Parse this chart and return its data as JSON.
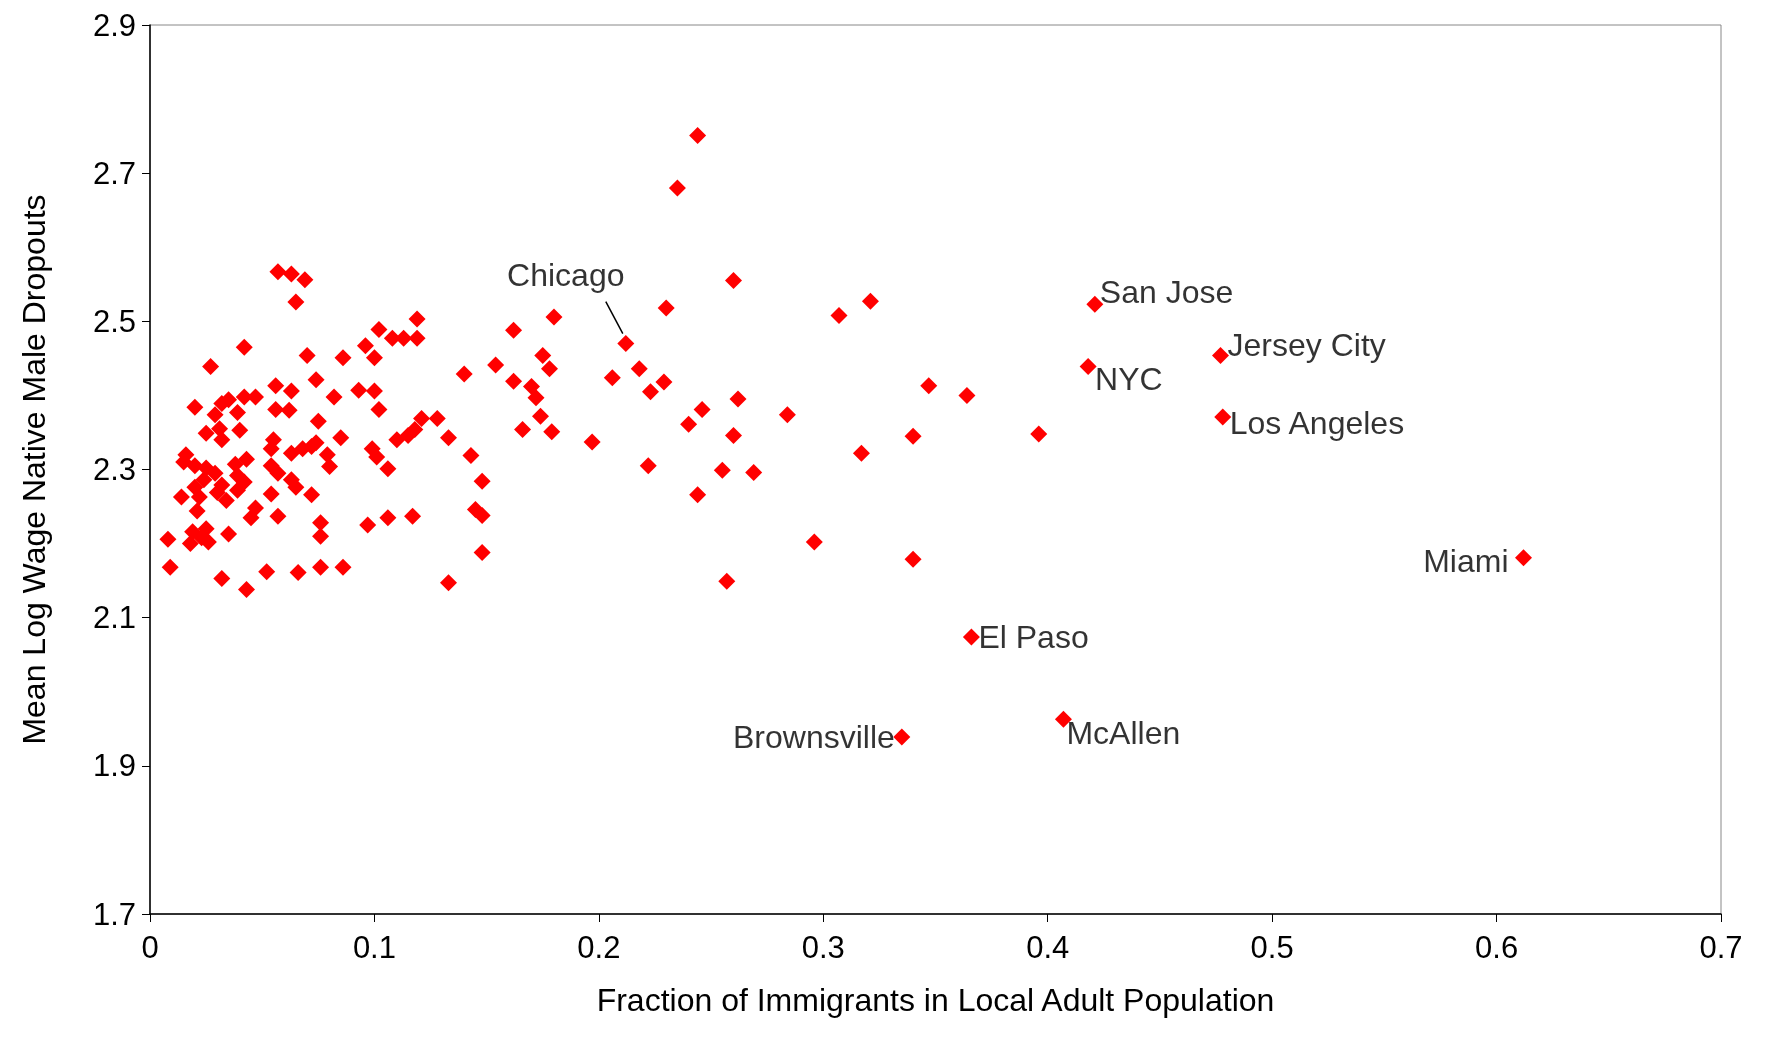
{
  "chart_data": {
    "type": "scatter",
    "xlabel": "Fraction of Immigrants in Local Adult Population",
    "ylabel": "Mean Log Wage Native Male Dropouts",
    "marker": "diamond",
    "grid": false,
    "xlim": [
      0,
      0.7
    ],
    "xticks": [
      0,
      0.1,
      0.2,
      0.3,
      0.4,
      0.5,
      0.6,
      0.7
    ],
    "ylim": [
      1.7,
      2.9
    ],
    "yticks": [
      1.7,
      1.9,
      2.1,
      2.3,
      2.5,
      2.7,
      2.9
    ],
    "series": [
      {
        "color": "#ff0000",
        "x": [
          0.244,
          0.235,
          0.26,
          0.23,
          0.307,
          0.321,
          0.212,
          0.218,
          0.206,
          0.229,
          0.223,
          0.246,
          0.24,
          0.262,
          0.26,
          0.284,
          0.347,
          0.364,
          0.34,
          0.396,
          0.317,
          0.222,
          0.255,
          0.269,
          0.244,
          0.296,
          0.34,
          0.257,
          0.197,
          0.421,
          0.418,
          0.477,
          0.478,
          0.612,
          0.366,
          0.407,
          0.335,
          0.18,
          0.162,
          0.154,
          0.14,
          0.162,
          0.175,
          0.178,
          0.17,
          0.172,
          0.166,
          0.179,
          0.174,
          0.133,
          0.143,
          0.148,
          0.145,
          0.148,
          0.148,
          0.133,
          0.119,
          0.119,
          0.113,
          0.108,
          0.102,
          0.096,
          0.1,
          0.093,
          0.1,
          0.102,
          0.121,
          0.128,
          0.118,
          0.115,
          0.11,
          0.099,
          0.101,
          0.106,
          0.117,
          0.106,
          0.097,
          0.086,
          0.057,
          0.063,
          0.069,
          0.065,
          0.042,
          0.07,
          0.086,
          0.027,
          0.056,
          0.063,
          0.074,
          0.082,
          0.047,
          0.042,
          0.02,
          0.032,
          0.035,
          0.039,
          0.029,
          0.056,
          0.062,
          0.075,
          0.04,
          0.025,
          0.032,
          0.085,
          0.031,
          0.055,
          0.072,
          0.079,
          0.068,
          0.054,
          0.063,
          0.074,
          0.016,
          0.015,
          0.043,
          0.038,
          0.02,
          0.025,
          0.054,
          0.08,
          0.029,
          0.039,
          0.057,
          0.024,
          0.032,
          0.042,
          0.063,
          0.039,
          0.065,
          0.03,
          0.054,
          0.072,
          0.014,
          0.022,
          0.034,
          0.021,
          0.047,
          0.045,
          0.057,
          0.076,
          0.025,
          0.019,
          0.035,
          0.008,
          0.023,
          0.076,
          0.018,
          0.026,
          0.009,
          0.052,
          0.032,
          0.066,
          0.076,
          0.043,
          0.02
        ],
        "values": [
          2.751,
          2.68,
          2.555,
          2.518,
          2.508,
          2.527,
          2.47,
          2.436,
          2.424,
          2.418,
          2.405,
          2.381,
          2.361,
          2.395,
          2.346,
          2.374,
          2.413,
          2.4,
          2.345,
          2.348,
          2.322,
          2.305,
          2.299,
          2.296,
          2.266,
          2.202,
          2.179,
          2.149,
          2.337,
          2.523,
          2.439,
          2.454,
          2.371,
          2.181,
          2.074,
          1.963,
          1.939,
          2.506,
          2.488,
          2.441,
          2.429,
          2.419,
          2.454,
          2.436,
          2.412,
          2.397,
          2.354,
          2.351,
          2.372,
          2.343,
          2.319,
          2.284,
          2.246,
          2.238,
          2.188,
          2.147,
          2.503,
          2.477,
          2.477,
          2.477,
          2.489,
          2.467,
          2.451,
          2.407,
          2.406,
          2.381,
          2.369,
          2.369,
          2.354,
          2.346,
          2.34,
          2.328,
          2.317,
          2.301,
          2.237,
          2.235,
          2.225,
          2.168,
          2.567,
          2.564,
          2.556,
          2.526,
          2.465,
          2.454,
          2.451,
          2.439,
          2.413,
          2.406,
          2.421,
          2.398,
          2.398,
          2.398,
          2.384,
          2.389,
          2.394,
          2.377,
          2.374,
          2.381,
          2.38,
          2.365,
          2.353,
          2.349,
          2.34,
          2.343,
          2.355,
          2.34,
          2.331,
          2.32,
          2.328,
          2.328,
          2.322,
          2.336,
          2.32,
          2.31,
          2.314,
          2.307,
          2.305,
          2.302,
          2.305,
          2.304,
          2.295,
          2.292,
          2.295,
          2.286,
          2.279,
          2.283,
          2.286,
          2.272,
          2.276,
          2.269,
          2.267,
          2.266,
          2.263,
          2.263,
          2.258,
          2.244,
          2.248,
          2.235,
          2.237,
          2.228,
          2.22,
          2.216,
          2.213,
          2.206,
          2.208,
          2.21,
          2.2,
          2.202,
          2.168,
          2.162,
          2.153,
          2.161,
          2.168,
          2.138,
          2.276
        ]
      }
    ],
    "annotations": [
      {
        "text": "Chicago",
        "x": 0.212,
        "y": 2.47
      },
      {
        "text": "San Jose",
        "x": 0.421,
        "y": 2.523
      },
      {
        "text": "NYC",
        "x": 0.418,
        "y": 2.439
      },
      {
        "text": "Jersey City",
        "x": 0.477,
        "y": 2.454
      },
      {
        "text": "Los Angeles",
        "x": 0.478,
        "y": 2.371
      },
      {
        "text": "Miami",
        "x": 0.612,
        "y": 2.181
      },
      {
        "text": "El Paso",
        "x": 0.366,
        "y": 2.074
      },
      {
        "text": "McAllen",
        "x": 0.407,
        "y": 1.963
      },
      {
        "text": "Brownsville",
        "x": 0.335,
        "y": 1.939
      }
    ]
  }
}
